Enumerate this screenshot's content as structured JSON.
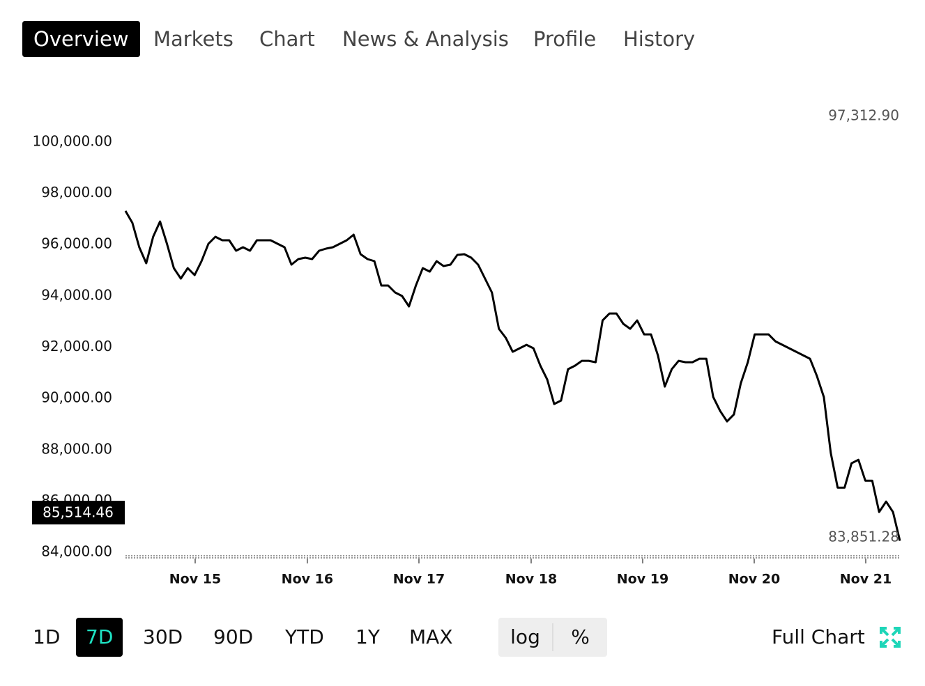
{
  "tabs": [
    "Overview",
    "Markets",
    "Chart",
    "News & Analysis",
    "Profile",
    "History"
  ],
  "active_tab": "Overview",
  "chart_data": {
    "type": "line",
    "color": "#000000",
    "values": [
      97312.9,
      96848,
      95897,
      95272,
      96304,
      96902,
      96033,
      95082,
      94674,
      95082,
      94810,
      95353,
      96033,
      96304,
      96168,
      96168,
      95761,
      95897,
      95761,
      96168,
      96168,
      96168,
      96033,
      95897,
      95217,
      95435,
      95489,
      95435,
      95761,
      95842,
      95897,
      96033,
      96168,
      96386,
      95625,
      95435,
      95353,
      94402,
      94402,
      94130,
      93995,
      93587,
      94402,
      95082,
      94946,
      95353,
      95163,
      95217,
      95598,
      95625,
      95489,
      95217,
      94674,
      94130,
      92717,
      92364,
      91821,
      91957,
      92092,
      91957,
      91277,
      90734,
      89783,
      89918,
      91141,
      91277,
      91467,
      91467,
      91413,
      93043,
      93315,
      93315,
      92908,
      92717,
      93043,
      92500,
      92500,
      91685,
      90462,
      91141,
      91467,
      91413,
      91413,
      91549,
      91549,
      90054,
      89511,
      89103,
      89375,
      90598,
      91413,
      92500,
      92500,
      92500,
      92228,
      92092,
      91957,
      91821,
      91685,
      91549,
      90870,
      90054,
      87880,
      86521,
      86521,
      87473,
      87609,
      86793,
      86793,
      85571,
      85978,
      85571,
      84450
    ],
    "xlim": [
      0,
      112
    ],
    "xticks": [
      {
        "value": 10.08,
        "label": "Nov 15"
      },
      {
        "value": 26.3,
        "label": "Nov 16"
      },
      {
        "value": 42.44,
        "label": "Nov 17"
      },
      {
        "value": 58.67,
        "label": "Nov 18"
      },
      {
        "value": 74.8,
        "label": "Nov 19"
      },
      {
        "value": 90.93,
        "label": "Nov 20"
      },
      {
        "value": 107.06,
        "label": "Nov 21"
      }
    ],
    "ylim": [
      83800,
      101600
    ],
    "yticks": [
      {
        "value": 84000,
        "label": "84,000.00"
      },
      {
        "value": 86000,
        "label": "86,000.00"
      },
      {
        "value": 88000,
        "label": "88,000.00"
      },
      {
        "value": 90000,
        "label": "90,000.00"
      },
      {
        "value": 92000,
        "label": "92,000.00"
      },
      {
        "value": 94000,
        "label": "94,000.00"
      },
      {
        "value": 96000,
        "label": "96,000.00"
      },
      {
        "value": 98000,
        "label": "98,000.00"
      },
      {
        "value": 100000,
        "label": "100,000.00"
      }
    ],
    "max_label": "97,312.90",
    "min_label": "83,851.28",
    "last_price_label": "85,514.46"
  },
  "ranges": [
    "1D",
    "7D",
    "30D",
    "90D",
    "YTD",
    "1Y",
    "MAX"
  ],
  "active_range": "7D",
  "scale_options": [
    "log",
    "%"
  ],
  "full_chart": "Full Chart"
}
